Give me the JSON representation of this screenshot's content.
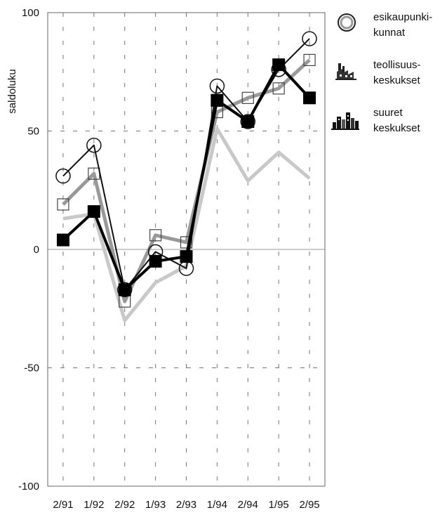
{
  "chart_data": {
    "type": "line",
    "title": "",
    "xlabel": "",
    "ylabel": "saldoluku",
    "ylim": [
      -100,
      100
    ],
    "yticks": [
      "100",
      "50",
      "0",
      "-50",
      "-100"
    ],
    "categories": [
      "2/91",
      "1/92",
      "2/92",
      "1/93",
      "2/93",
      "1/94",
      "2/94",
      "1/95",
      "2/95"
    ],
    "grid": true,
    "legend_position": "top-right",
    "series": [
      {
        "name": "esikaupunki-kunnat",
        "marker": "circle",
        "color": "#111111",
        "values": [
          31,
          44,
          -17,
          -1,
          -8,
          69,
          54,
          76,
          89
        ]
      },
      {
        "name": "teollisuus-keskukset",
        "marker": "square-open",
        "color": "#999999",
        "values": [
          19,
          32,
          -22,
          6,
          3,
          58,
          64,
          68,
          80
        ]
      },
      {
        "name": "suuret keskukset",
        "marker": "square-filled",
        "color": "#000000",
        "values": [
          4,
          16,
          -17,
          -5,
          -3,
          63,
          54,
          78,
          64
        ]
      },
      {
        "name": "",
        "marker": "none",
        "color": "#c8c8c8",
        "values": [
          13,
          15,
          -30,
          -14,
          -7,
          51,
          29,
          41,
          30
        ]
      }
    ]
  },
  "legend": {
    "items": [
      {
        "line1": "esikaupunki-",
        "line2": "kunnat",
        "icon": "circle-icon"
      },
      {
        "line1": "teollisuus-",
        "line2": "keskukset",
        "icon": "factory-icon"
      },
      {
        "line1": "suuret",
        "line2": "keskukset",
        "icon": "city-skyline-icon"
      }
    ]
  }
}
